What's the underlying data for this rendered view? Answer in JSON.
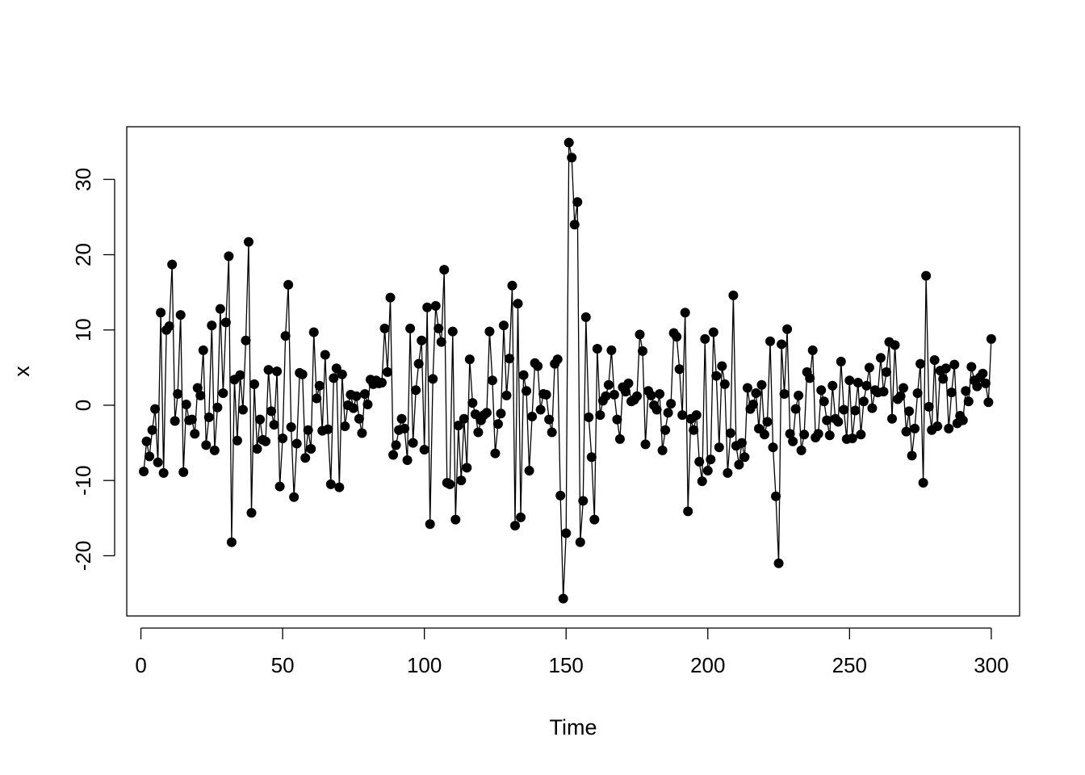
{
  "chart_data": {
    "type": "line",
    "style": "points-and-lines",
    "title": "",
    "xlabel": "Time",
    "ylabel": "x",
    "xlim": [
      -5,
      310
    ],
    "ylim": [
      -28,
      37
    ],
    "x_ticks": [
      0,
      50,
      100,
      150,
      200,
      250,
      300
    ],
    "y_ticks": [
      -20,
      -10,
      0,
      10,
      20,
      30
    ],
    "x_tick_labels": [
      "0",
      "50",
      "100",
      "150",
      "200",
      "250",
      "300"
    ],
    "y_tick_labels": [
      "-20",
      "-10",
      "0",
      "10",
      "20",
      "30"
    ],
    "grid": false,
    "legend": "none",
    "colors": {
      "series": "#000000",
      "background": "#ffffff",
      "frame": "#000000"
    },
    "series": [
      {
        "x_start": 1,
        "x_step": 1,
        "values": [
          -8.8,
          -4.8,
          -6.8,
          -3.3,
          -0.5,
          -7.6,
          12.3,
          -9.0,
          10.0,
          10.5,
          18.7,
          -2.1,
          1.5,
          12.0,
          -8.9,
          0.1,
          -2.0,
          -1.9,
          -3.8,
          2.3,
          1.3,
          7.3,
          -5.3,
          -1.6,
          10.6,
          -6.0,
          -0.3,
          12.8,
          1.6,
          11.0,
          19.8,
          -18.2,
          3.4,
          -4.7,
          4.0,
          -0.6,
          8.6,
          21.7,
          -14.3,
          2.8,
          -5.8,
          -1.9,
          -4.6,
          -4.8,
          4.7,
          -0.8,
          -2.6,
          4.5,
          -10.8,
          -4.4,
          9.2,
          16.0,
          -2.9,
          -12.2,
          -5.1,
          4.3,
          4.1,
          -7.0,
          -3.3,
          -5.8,
          9.7,
          0.9,
          2.6,
          -3.4,
          6.7,
          -3.2,
          -10.5,
          3.6,
          4.9,
          -10.9,
          4.1,
          -2.8,
          0.0,
          1.4,
          -0.4,
          1.2,
          -1.8,
          -3.7,
          1.5,
          0.1,
          3.4,
          2.8,
          3.3,
          2.9,
          3.0,
          10.2,
          4.4,
          14.3,
          -6.6,
          -5.3,
          -3.3,
          -1.8,
          -3.1,
          -7.3,
          10.2,
          -5.0,
          2.0,
          5.5,
          8.6,
          -5.9,
          13.0,
          -15.8,
          3.5,
          13.2,
          10.2,
          8.4,
          18.0,
          -10.3,
          -10.5,
          9.8,
          -15.2,
          -2.7,
          -10.0,
          -1.8,
          -8.3,
          6.1,
          0.3,
          -1.2,
          -3.6,
          -2.0,
          -1.3,
          -1.0,
          9.8,
          3.3,
          -6.4,
          -2.5,
          -1.1,
          10.6,
          1.3,
          6.2,
          15.9,
          -16.0,
          13.5,
          -14.9,
          4.0,
          1.9,
          -8.7,
          -1.5,
          5.6,
          5.2,
          -0.6,
          1.5,
          1.4,
          -1.9,
          -3.6,
          5.5,
          6.1,
          -12.0,
          -25.7,
          -17.0,
          34.9,
          32.9,
          24.0,
          27.0,
          -18.2,
          -12.7,
          11.7,
          -1.6,
          -6.9,
          -15.2,
          7.5,
          -1.3,
          0.6,
          1.2,
          2.7,
          7.3,
          1.4,
          -1.9,
          -4.5,
          2.4,
          1.8,
          2.9,
          0.5,
          0.7,
          1.2,
          9.4,
          7.2,
          -5.2,
          1.9,
          1.3,
          0.0,
          -0.6,
          1.5,
          -6.0,
          -3.3,
          -1.0,
          0.2,
          9.6,
          9.1,
          4.8,
          -1.3,
          12.3,
          -14.1,
          -1.8,
          -3.3,
          -1.3,
          -7.5,
          -10.1,
          8.8,
          -8.7,
          -7.2,
          9.7,
          3.9,
          -5.6,
          5.2,
          2.8,
          -9.0,
          -3.7,
          14.6,
          -5.4,
          -7.9,
          -5.0,
          -6.9,
          2.3,
          -0.5,
          0.1,
          1.6,
          -3.1,
          2.7,
          -3.9,
          -2.2,
          8.5,
          -5.6,
          -12.1,
          -21.0,
          8.1,
          1.5,
          10.1,
          -3.8,
          -4.8,
          -0.5,
          1.3,
          -6.0,
          -3.9,
          4.4,
          3.6,
          7.3,
          -4.3,
          -3.8,
          2.0,
          0.5,
          -2.0,
          -4.0,
          2.6,
          -1.8,
          -2.2,
          5.8,
          -0.6,
          -4.5,
          3.3,
          -4.4,
          -0.7,
          3.0,
          -3.9,
          0.5,
          2.6,
          5.0,
          -0.4,
          2.0,
          1.7,
          6.3,
          1.8,
          4.4,
          8.4,
          -1.8,
          8.0,
          0.8,
          1.2,
          2.3,
          -3.5,
          -0.8,
          -6.7,
          -3.1,
          1.6,
          5.5,
          -10.3,
          17.2,
          -0.2,
          -3.3,
          6.0,
          -2.8,
          4.6,
          3.5,
          4.9,
          -3.1,
          1.7,
          5.4,
          -2.4,
          -1.4,
          -2.0,
          1.9,
          0.5,
          5.1,
          3.3,
          2.5,
          3.7,
          4.2,
          2.9,
          0.4,
          8.8
        ]
      }
    ]
  }
}
